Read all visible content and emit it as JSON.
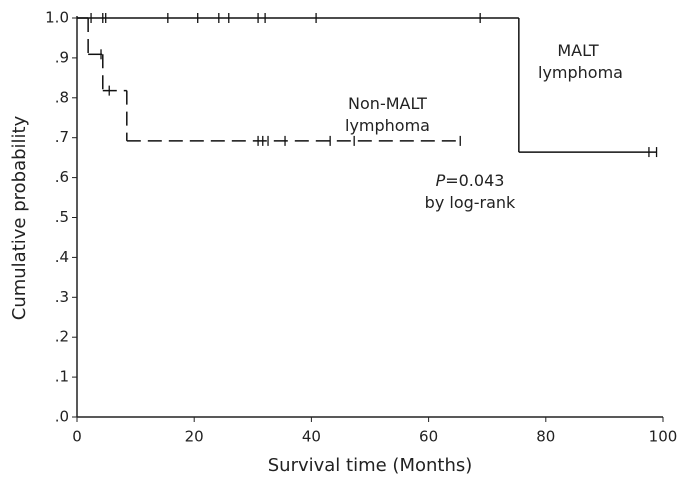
{
  "chart_data": {
    "type": "survival",
    "x_label": "Survival time (Months)",
    "y_label": "Cumulative probability",
    "xlim": [
      0,
      100
    ],
    "xticks": [
      0,
      20,
      40,
      60,
      80,
      100
    ],
    "ylim": [
      0,
      1
    ],
    "yticks": [
      {
        "value": 0,
        "label": ".0"
      },
      {
        "value": 0.1,
        "label": ".1"
      },
      {
        "value": 0.2,
        "label": ".2"
      },
      {
        "value": 0.3,
        "label": ".3"
      },
      {
        "value": 0.4,
        "label": ".4"
      },
      {
        "value": 0.5,
        "label": ".5"
      },
      {
        "value": 0.6,
        "label": ".6"
      },
      {
        "value": 0.7,
        "label": ".7"
      },
      {
        "value": 0.8,
        "label": ".8"
      },
      {
        "value": 0.9,
        "label": ".9"
      },
      {
        "value": 1,
        "label": "1.0"
      }
    ],
    "series": [
      {
        "name": "MALT lymphoma",
        "color": "#111111",
        "dashed": false,
        "x": [
          0,
          75.4
        ],
        "values": [
          1,
          0.664
        ],
        "censor_x": [
          2.4,
          4.4,
          4.9,
          15.5,
          20.6,
          24.2,
          25.9,
          30.9,
          32.1,
          40.8,
          68.8,
          97.6,
          98.9
        ],
        "censor_values": [
          1,
          1,
          1,
          1,
          1,
          1,
          1,
          1,
          1,
          1,
          1,
          0.664,
          0.664
        ]
      },
      {
        "name": "Non-MALT lymphoma",
        "color": "#111111",
        "dashed": true,
        "x": [
          0,
          1.9,
          4.4,
          8.5
        ],
        "values": [
          1,
          0.909,
          0.818,
          0.692
        ],
        "censor_x": [
          4.1,
          5.5,
          30.9,
          31.7,
          32.6,
          35.5,
          43.2,
          47.3,
          65.4
        ],
        "censor_values": [
          0.909,
          0.818,
          0.692,
          0.692,
          0.692,
          0.692,
          0.692,
          0.692,
          0.692
        ]
      }
    ],
    "annotation": {
      "symbol": "P",
      "text": "=0.043",
      "method": "by log-rank"
    }
  }
}
